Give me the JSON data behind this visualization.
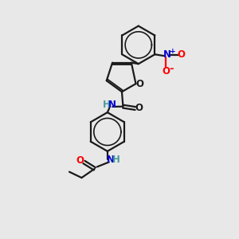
{
  "bg_color": "#e8e8e8",
  "line_color": "#1a1a1a",
  "N_color": "#0000cd",
  "O_color": "#ff0000",
  "H_color": "#4a9a9a",
  "bond_lw": 1.6,
  "font_size": 8.5,
  "fig_w": 3.0,
  "fig_h": 3.0,
  "dpi": 100,
  "xlim": [
    0,
    10
  ],
  "ylim": [
    0,
    10
  ]
}
